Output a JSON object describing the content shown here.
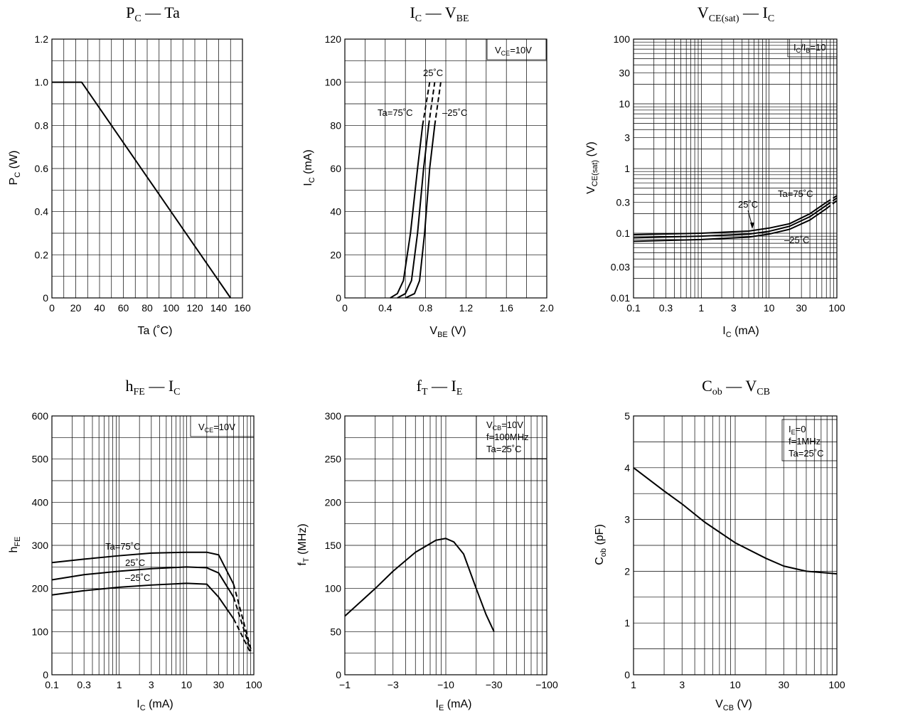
{
  "chart_data": [
    {
      "id": "pc-ta",
      "type": "line",
      "title": "P_C — Ta",
      "xlabel": "Ta (°C)",
      "ylabel": "P_C (W)",
      "xscale": "linear",
      "yscale": "linear",
      "xlim": [
        0,
        160
      ],
      "ylim": [
        0,
        1.2
      ],
      "xticks": [
        0,
        20,
        40,
        60,
        80,
        100,
        120,
        140,
        160
      ],
      "xtick_labels": [
        "0",
        "20",
        "40",
        "60",
        "80",
        "100",
        "120",
        "140",
        "160"
      ],
      "yticks": [
        0,
        0.2,
        0.4,
        0.6,
        0.8,
        1.0,
        1.2
      ],
      "ytick_labels": [
        "0",
        "0.2",
        "0.4",
        "0.6",
        "0.8",
        "1.0",
        "1.2"
      ],
      "xgrid": [
        10,
        20,
        30,
        40,
        50,
        60,
        70,
        80,
        90,
        100,
        110,
        120,
        130,
        140,
        150
      ],
      "ygrid": [
        0.1,
        0.2,
        0.3,
        0.4,
        0.5,
        0.6,
        0.7,
        0.8,
        0.9,
        1.0,
        1.1
      ],
      "grid": true,
      "legend": "",
      "series": [
        {
          "x": [
            0,
            25,
            150
          ],
          "y": [
            1.0,
            1.0,
            0
          ]
        }
      ]
    },
    {
      "id": "ic-vbe",
      "type": "line",
      "title": "I_C — V_BE",
      "xlabel": "V_BE (V)",
      "ylabel": "I_C (mA)",
      "xscale": "linear",
      "yscale": "linear",
      "xlim": [
        0,
        2.0
      ],
      "ylim": [
        0,
        120
      ],
      "xticks": [
        0,
        0.4,
        0.8,
        1.2,
        1.6,
        2.0
      ],
      "xtick_labels": [
        "0",
        "0.4",
        "0.8",
        "1.2",
        "1.6",
        "2.0"
      ],
      "yticks": [
        0,
        20,
        40,
        60,
        80,
        100,
        120
      ],
      "ytick_labels": [
        "0",
        "20",
        "40",
        "60",
        "80",
        "100",
        "120"
      ],
      "xgrid": [
        0.2,
        0.4,
        0.6,
        0.8,
        1.0,
        1.2,
        1.4,
        1.6,
        1.8
      ],
      "ygrid": [
        10,
        20,
        30,
        40,
        50,
        60,
        70,
        80,
        90,
        100,
        110
      ],
      "grid": true,
      "legend": "top-right",
      "legend_text": "V_CE=10V",
      "series": [
        {
          "name": "Ta=75°C",
          "x": [
            0.45,
            0.52,
            0.58,
            0.65,
            0.72,
            0.77,
            0.84
          ],
          "y": [
            0,
            2,
            8,
            30,
            60,
            80,
            100
          ],
          "dashed_from_y": 80
        },
        {
          "name": "25°C",
          "x": [
            0.52,
            0.6,
            0.66,
            0.72,
            0.78,
            0.83,
            0.89
          ],
          "y": [
            0,
            2,
            8,
            30,
            60,
            80,
            100
          ],
          "dashed_from_y": 80
        },
        {
          "name": "-25°C",
          "x": [
            0.6,
            0.69,
            0.74,
            0.79,
            0.84,
            0.89,
            0.95
          ],
          "y": [
            0,
            2,
            8,
            30,
            60,
            80,
            100
          ],
          "dashed_from_y": 80
        }
      ]
    },
    {
      "id": "vcesat-ic",
      "type": "line",
      "title": "V_CE(sat) — I_C",
      "xlabel": "I_C (mA)",
      "ylabel": "V_CE(sat) (V)",
      "xscale": "log",
      "yscale": "log",
      "xlim": [
        0.1,
        100
      ],
      "ylim": [
        0.01,
        100
      ],
      "xticks": [
        0.1,
        0.3,
        1,
        3,
        10,
        30,
        100
      ],
      "xtick_labels": [
        "0.1",
        "0.3",
        "1",
        "3",
        "10",
        "30",
        "100"
      ],
      "yticks": [
        0.01,
        0.03,
        0.1,
        0.3,
        1,
        3,
        10,
        30,
        100
      ],
      "ytick_labels": [
        "0.01",
        "0.03",
        "0.1",
        "0.3",
        "1",
        "3",
        "10",
        "30",
        "100"
      ],
      "grid": true,
      "legend": "top-right",
      "legend_text": "I_C/I_B=10",
      "series": [
        {
          "name": "Ta=75°C",
          "x": [
            0.1,
            1,
            5,
            10,
            20,
            40,
            70,
            100
          ],
          "y": [
            0.095,
            0.1,
            0.108,
            0.12,
            0.14,
            0.2,
            0.3,
            0.38
          ],
          "dashed_from_x": 70
        },
        {
          "name": "25°C",
          "x": [
            0.1,
            1,
            5,
            10,
            20,
            40,
            70,
            100
          ],
          "y": [
            0.085,
            0.09,
            0.097,
            0.107,
            0.128,
            0.18,
            0.27,
            0.35
          ],
          "dashed_from_x": 70
        },
        {
          "name": "-25°C",
          "x": [
            0.1,
            1,
            5,
            10,
            20,
            40,
            70,
            100
          ],
          "y": [
            0.075,
            0.08,
            0.087,
            0.097,
            0.115,
            0.16,
            0.24,
            0.32
          ],
          "dashed_from_x": 70
        }
      ]
    },
    {
      "id": "hfe-ic",
      "type": "line",
      "title": "h_FE — I_C",
      "xlabel": "I_C (mA)",
      "ylabel": "h_FE",
      "xscale": "log",
      "yscale": "linear",
      "xlim": [
        0.1,
        100
      ],
      "ylim": [
        0,
        600
      ],
      "xticks": [
        0.1,
        0.3,
        1,
        3,
        10,
        30,
        100
      ],
      "xtick_labels": [
        "0.1",
        "0.3",
        "1",
        "3",
        "10",
        "30",
        "100"
      ],
      "yticks": [
        0,
        100,
        200,
        300,
        400,
        500,
        600
      ],
      "ytick_labels": [
        "0",
        "100",
        "200",
        "300",
        "400",
        "500",
        "600"
      ],
      "ygrid": [
        50,
        100,
        150,
        200,
        250,
        300,
        350,
        400,
        450,
        500,
        550
      ],
      "grid": true,
      "legend": "top-right",
      "legend_text": "V_CE=10V",
      "series": [
        {
          "name": "Ta=75°C",
          "x": [
            0.1,
            0.3,
            1,
            3,
            10,
            20,
            30,
            50,
            90
          ],
          "y": [
            260,
            268,
            276,
            282,
            284,
            284,
            278,
            210,
            60
          ],
          "dashed_from_x": 50
        },
        {
          "name": "25°C",
          "x": [
            0.1,
            0.3,
            1,
            3,
            10,
            20,
            30,
            50,
            90
          ],
          "y": [
            220,
            232,
            240,
            246,
            250,
            248,
            236,
            180,
            55
          ],
          "dashed_from_x": 50
        },
        {
          "name": "-25°C",
          "x": [
            0.1,
            0.3,
            1,
            3,
            10,
            20,
            30,
            50,
            90
          ],
          "y": [
            185,
            195,
            203,
            208,
            212,
            210,
            180,
            130,
            50
          ],
          "dashed_from_x": 50
        }
      ]
    },
    {
      "id": "ft-ie",
      "type": "line",
      "title": "f_T — I_E",
      "xlabel": "I_E (mA)",
      "ylabel": "f_T (MHz)",
      "xscale": "log",
      "yscale": "linear",
      "xlim": [
        -1,
        -100
      ],
      "ylim": [
        0,
        300
      ],
      "xticks": [
        -1,
        -3,
        -10,
        -30,
        -100
      ],
      "xtick_labels": [
        "−1",
        "−3",
        "−10",
        "−30",
        "−100"
      ],
      "yticks": [
        0,
        50,
        100,
        150,
        200,
        250,
        300
      ],
      "ytick_labels": [
        "0",
        "50",
        "100",
        "150",
        "200",
        "250",
        "300"
      ],
      "ygrid": [
        25,
        50,
        75,
        100,
        125,
        150,
        175,
        200,
        225,
        250,
        275
      ],
      "grid": true,
      "legend": "top-right",
      "legend_text": [
        "V_CB=10V",
        "f=100MHz",
        "Ta=25°C"
      ],
      "series": [
        {
          "x": [
            -1,
            -2,
            -3,
            -5,
            -8,
            -10,
            -12,
            -15,
            -20,
            -25,
            -30
          ],
          "y": [
            68,
            100,
            120,
            142,
            156,
            158,
            154,
            140,
            100,
            70,
            50
          ]
        }
      ]
    },
    {
      "id": "cob-vcb",
      "type": "line",
      "title": "C_ob — V_CB",
      "xlabel": "V_CB (V)",
      "ylabel": "C_ob (pF)",
      "xscale": "log",
      "yscale": "linear",
      "xlim": [
        1,
        100
      ],
      "ylim": [
        0,
        5
      ],
      "xticks": [
        1,
        3,
        10,
        30,
        100
      ],
      "xtick_labels": [
        "1",
        "3",
        "10",
        "30",
        "100"
      ],
      "yticks": [
        0,
        1,
        2,
        3,
        4,
        5
      ],
      "ytick_labels": [
        "0",
        "1",
        "2",
        "3",
        "4",
        "5"
      ],
      "ygrid": [
        0.5,
        1,
        1.5,
        2,
        2.5,
        3,
        3.5,
        4,
        4.5
      ],
      "grid": true,
      "legend": "top-right",
      "legend_text": [
        "I_E=0",
        "f=1MHz",
        "Ta=25°C"
      ],
      "series": [
        {
          "x": [
            1,
            2,
            3,
            5,
            10,
            20,
            30,
            50,
            100
          ],
          "y": [
            4.0,
            3.55,
            3.3,
            2.95,
            2.55,
            2.25,
            2.1,
            2.0,
            1.95
          ]
        }
      ]
    }
  ],
  "panels": {
    "pc_ta": {
      "title_a": "P",
      "title_a_sub": "C",
      "title_b": " — Ta",
      "xlabel": "Ta   (˚C)",
      "ylabel_a": "P",
      "ylabel_sub": "C",
      "ylabel_b": "  (W)"
    },
    "ic_vbe": {
      "title_a": "I",
      "title_a_sub": "C",
      "title_b": " — V",
      "title_b_sub": "BE",
      "xlabel_a": "V",
      "xlabel_sub": "BE",
      "xlabel_b": "   (V)",
      "ylabel_a": "I",
      "ylabel_sub": "C",
      "ylabel_b": "  (mA)",
      "legend_a": "V",
      "legend_sub": "CE",
      "legend_b": "=10V",
      "curve_labels": [
        "Ta=75˚C",
        "25˚C",
        "–25˚C"
      ]
    },
    "vce_ic": {
      "title_a": "V",
      "title_a_sub": "CE(sat)",
      "title_b": " — I",
      "title_b_sub": "C",
      "xlabel_a": "I",
      "xlabel_sub": "C",
      "xlabel_b": "   (mA)",
      "ylabel_a": "V",
      "ylabel_sub": "CE(sat)",
      "ylabel_b": "   (V)",
      "legend_a": "I",
      "legend_sub1": "C",
      "legend_b": "/I",
      "legend_sub2": "B",
      "legend_c": "=10",
      "curve_labels": [
        "Ta=75˚C",
        "25˚C",
        "–25˚C"
      ]
    },
    "hfe_ic": {
      "title_a": "h",
      "title_a_sub": "FE",
      "title_b": " — I",
      "title_b_sub": "C",
      "xlabel_a": "I",
      "xlabel_sub": "C",
      "xlabel_b": "   (mA)",
      "ylabel_a": "h",
      "ylabel_sub": "FE",
      "legend_a": "V",
      "legend_sub": "CE",
      "legend_b": "=10V",
      "curve_labels": [
        "Ta=75˚C",
        "25˚C",
        "–25˚C"
      ]
    },
    "ft_ie": {
      "title_a": "f",
      "title_a_sub": "T",
      "title_b": " — I",
      "title_b_sub": "E",
      "xlabel_a": "I",
      "xlabel_sub": "E",
      "xlabel_b": "   (mA)",
      "ylabel_a": "f",
      "ylabel_sub": "T",
      "ylabel_b": "  (MHz)",
      "legend_l1_a": "V",
      "legend_l1_sub": "CB",
      "legend_l1_b": "=10V",
      "legend_l2": "f=100MHz",
      "legend_l3": "Ta=25˚C"
    },
    "cob_vcb": {
      "title_a": "C",
      "title_a_sub": "ob",
      "title_b": " — V",
      "title_b_sub": "CB",
      "xlabel_a": "V",
      "xlabel_sub": "CB",
      "xlabel_b": "   (V)",
      "ylabel_a": "C",
      "ylabel_sub": "ob",
      "ylabel_b": "  (pF)",
      "legend_l1_a": "I",
      "legend_l1_sub": "E",
      "legend_l1_b": "=0",
      "legend_l2": "f=1MHz",
      "legend_l3": "Ta=25˚C"
    }
  }
}
